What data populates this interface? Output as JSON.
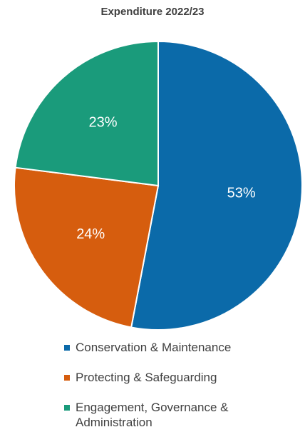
{
  "chart_data": {
    "type": "pie",
    "title": "Expenditure 2022/23",
    "categories": [
      "Conservation & Maintenance",
      "Protecting & Safeguarding",
      "Engagement, Governance & Administration"
    ],
    "values": [
      53,
      24,
      23
    ],
    "data_labels": [
      "53%",
      "24%",
      "23%"
    ],
    "colors": [
      "#0b6aa9",
      "#d65d0e",
      "#1a9b7b"
    ],
    "legend_position": "bottom",
    "start_angle_direction": "clockwise from top"
  }
}
